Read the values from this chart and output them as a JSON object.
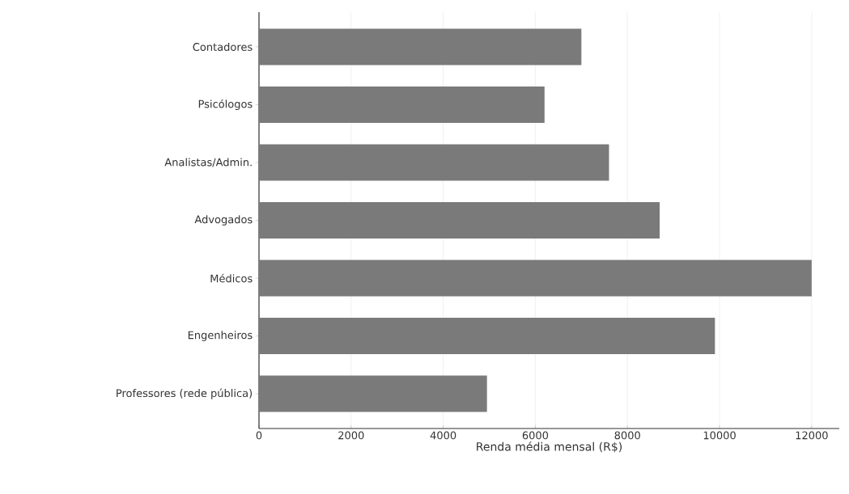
{
  "chart_data": {
    "type": "bar",
    "orientation": "horizontal",
    "xlabel": "Renda média mensal (R$)",
    "categories": [
      "Contadores",
      "Psicólogos",
      "Analistas/Admin.",
      "Advogados",
      "Médicos",
      "Engenheiros",
      "Professores (rede pública)"
    ],
    "values": [
      7000,
      6200,
      7600,
      8700,
      12000,
      9900,
      4950
    ],
    "color": "#7a7a7a",
    "xlim": [
      0,
      12600
    ],
    "xticks": [
      0,
      2000,
      4000,
      6000,
      8000,
      10000,
      12000
    ],
    "grid": "x"
  }
}
